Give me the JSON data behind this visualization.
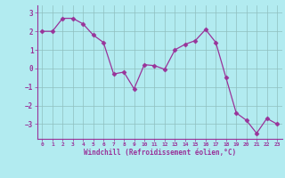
{
  "x": [
    0,
    1,
    2,
    3,
    4,
    5,
    6,
    7,
    8,
    9,
    10,
    11,
    12,
    13,
    14,
    15,
    16,
    17,
    18,
    19,
    20,
    21,
    22,
    23
  ],
  "y": [
    2.0,
    2.0,
    2.7,
    2.7,
    2.4,
    1.8,
    1.4,
    -0.3,
    -0.2,
    -1.1,
    0.2,
    0.15,
    -0.05,
    1.0,
    1.3,
    1.5,
    2.1,
    1.4,
    -0.5,
    -2.4,
    -2.8,
    -3.5,
    -2.7,
    -3.0
  ],
  "line_color": "#993399",
  "marker": "D",
  "marker_size": 2.5,
  "background_color": "#b2ebf0",
  "grid_color": "#8fbfbf",
  "xlabel": "Windchill (Refroidissement éolien,°C)",
  "xlabel_color": "#993399",
  "tick_color": "#993399",
  "xlim": [
    -0.5,
    23.5
  ],
  "ylim": [
    -3.8,
    3.4
  ],
  "yticks": [
    -3,
    -2,
    -1,
    0,
    1,
    2,
    3
  ],
  "xticks": [
    0,
    1,
    2,
    3,
    4,
    5,
    6,
    7,
    8,
    9,
    10,
    11,
    12,
    13,
    14,
    15,
    16,
    17,
    18,
    19,
    20,
    21,
    22,
    23
  ]
}
